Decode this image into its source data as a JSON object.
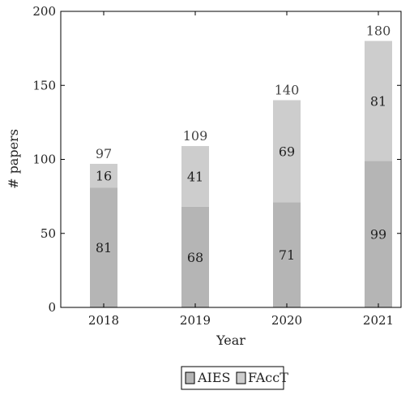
{
  "chart_data": {
    "type": "bar",
    "stacked": true,
    "categories": [
      "2018",
      "2019",
      "2020",
      "2021"
    ],
    "series": [
      {
        "name": "AIES",
        "values": [
          81,
          68,
          71,
          99
        ],
        "color": "#b5b5b5"
      },
      {
        "name": "FAccT",
        "values": [
          16,
          41,
          69,
          81
        ],
        "color": "#cdcdcd"
      }
    ],
    "totals": [
      97,
      109,
      140,
      180
    ],
    "xlabel": "Year",
    "ylabel": "# papers",
    "ylim": [
      0,
      200
    ],
    "yticks": [
      0,
      50,
      100,
      150,
      200
    ],
    "grid": false,
    "legend_position": "bottom"
  }
}
